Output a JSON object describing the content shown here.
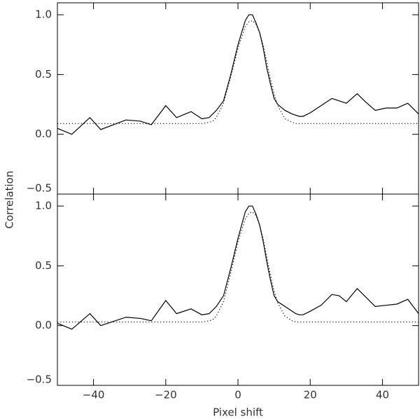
{
  "chart_data": [
    {
      "type": "line",
      "ylabel": "Correlation",
      "x": [
        -50,
        -46,
        -41,
        -38,
        -31,
        -27,
        -24,
        -20,
        -17,
        -13,
        -10,
        -8,
        -7,
        -6,
        -4,
        -2,
        0,
        2,
        3,
        4,
        5,
        6,
        7,
        8,
        9,
        10,
        11,
        13,
        15,
        16,
        17,
        18,
        20,
        23,
        26,
        28,
        30,
        33,
        35,
        38,
        41,
        44,
        47,
        50
      ],
      "xlim": [
        -50,
        50
      ],
      "ylim": [
        -0.5,
        1.1
      ],
      "yticks": [
        {
          "value": -0.5,
          "label": "−0.5"
        },
        {
          "value": 0,
          "label": "0.0"
        },
        0.5,
        {
          "value": 1,
          "label": "1.0"
        }
      ],
      "series": [
        {
          "color": "#000000",
          "dash": "solid",
          "values": [
            0.05,
            0.0,
            0.14,
            0.04,
            0.12,
            0.11,
            0.08,
            0.24,
            0.14,
            0.19,
            0.13,
            0.14,
            0.17,
            0.2,
            0.28,
            0.5,
            0.75,
            0.95,
            1.0,
            1.0,
            0.93,
            0.85,
            0.72,
            0.55,
            0.42,
            0.3,
            0.25,
            0.2,
            0.17,
            0.16,
            0.15,
            0.15,
            0.18,
            0.24,
            0.3,
            0.28,
            0.26,
            0.34,
            0.28,
            0.2,
            0.22,
            0.22,
            0.26,
            0.17
          ]
        },
        {
          "color": "#000000",
          "dash": "dotted",
          "values": [
            0.09,
            0.09,
            0.09,
            0.09,
            0.09,
            0.09,
            0.09,
            0.09,
            0.09,
            0.09,
            0.09,
            0.1,
            0.11,
            0.14,
            0.26,
            0.48,
            0.72,
            0.9,
            0.94,
            0.95,
            0.92,
            0.85,
            0.74,
            0.6,
            0.46,
            0.34,
            0.24,
            0.13,
            0.1,
            0.09,
            0.09,
            0.09,
            0.09,
            0.09,
            0.09,
            0.09,
            0.09,
            0.09,
            0.09,
            0.09,
            0.09,
            0.09,
            0.09,
            0.09
          ]
        }
      ]
    },
    {
      "type": "line",
      "xlabel": "Pixel shift",
      "x": [
        -50,
        -46,
        -41,
        -38,
        -31,
        -27,
        -24,
        -20,
        -17,
        -13,
        -10,
        -8,
        -7,
        -6,
        -4,
        -2,
        0,
        2,
        3,
        4,
        5,
        6,
        7,
        8,
        9,
        10,
        11,
        13,
        15,
        16,
        17,
        18,
        20,
        23,
        26,
        28,
        30,
        33,
        35,
        38,
        41,
        44,
        47,
        50
      ],
      "xlim": [
        -50,
        50
      ],
      "ylim": [
        -0.5,
        1.1
      ],
      "xticks": [
        {
          "value": -40,
          "label": "−40"
        },
        {
          "value": -20,
          "label": "−20"
        },
        0,
        20,
        40
      ],
      "yticks": [
        {
          "value": -0.5,
          "label": "−0.5"
        },
        {
          "value": 0,
          "label": "0.0"
        },
        0.5,
        {
          "value": 1,
          "label": "1.0"
        }
      ],
      "series": [
        {
          "color": "#000000",
          "dash": "solid",
          "values": [
            0.02,
            -0.03,
            0.1,
            0.0,
            0.07,
            0.06,
            0.04,
            0.21,
            0.1,
            0.14,
            0.09,
            0.1,
            0.13,
            0.16,
            0.25,
            0.48,
            0.73,
            0.95,
            1.0,
            1.0,
            0.93,
            0.84,
            0.7,
            0.53,
            0.38,
            0.25,
            0.2,
            0.16,
            0.12,
            0.1,
            0.09,
            0.09,
            0.12,
            0.17,
            0.26,
            0.25,
            0.2,
            0.31,
            0.25,
            0.16,
            0.17,
            0.18,
            0.22,
            0.1
          ]
        },
        {
          "color": "#000000",
          "dash": "dotted",
          "values": [
            0.03,
            0.03,
            0.03,
            0.03,
            0.03,
            0.03,
            0.03,
            0.03,
            0.03,
            0.03,
            0.03,
            0.04,
            0.05,
            0.08,
            0.2,
            0.44,
            0.7,
            0.89,
            0.94,
            0.95,
            0.92,
            0.84,
            0.72,
            0.57,
            0.42,
            0.29,
            0.19,
            0.08,
            0.04,
            0.03,
            0.03,
            0.03,
            0.03,
            0.03,
            0.03,
            0.03,
            0.03,
            0.03,
            0.03,
            0.03,
            0.03,
            0.03,
            0.03,
            0.03
          ]
        }
      ]
    }
  ]
}
